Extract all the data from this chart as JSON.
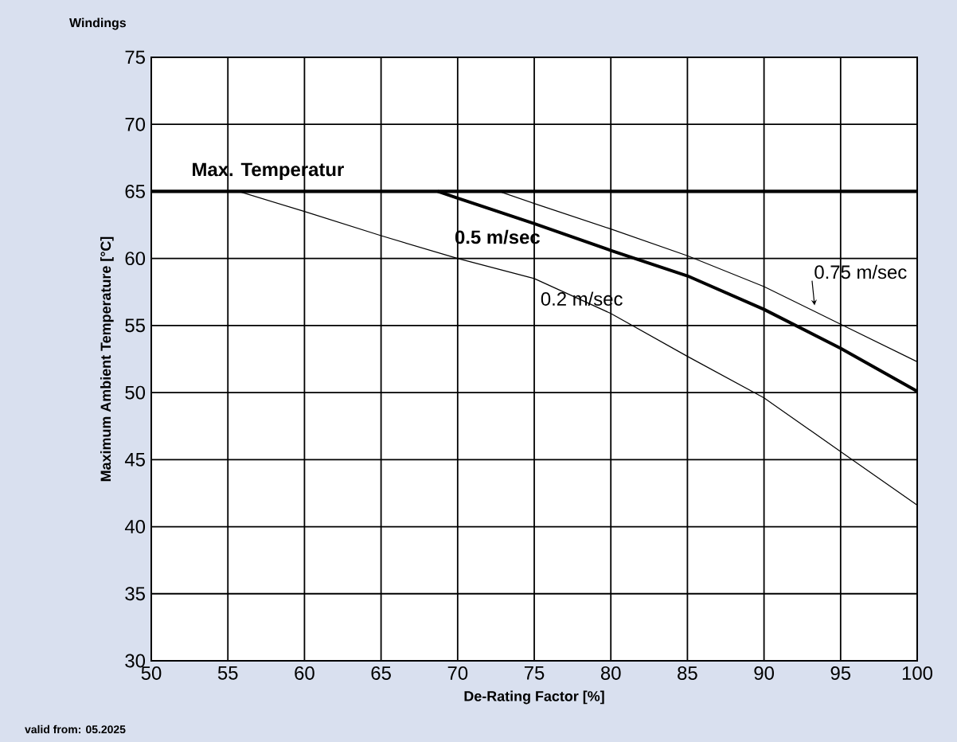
{
  "chart_data": {
    "type": "line",
    "title": "Windings",
    "xlabel": "De-Rating Factor [%]",
    "ylabel": "Maximum Ambient Temperature [°C]",
    "annotations": [
      "valid from: 05.2025"
    ],
    "xlim": [
      50,
      100
    ],
    "ylim": [
      30,
      75
    ],
    "xticks": [
      50,
      55,
      60,
      65,
      70,
      75,
      80,
      85,
      90,
      95,
      100
    ],
    "yticks": [
      30,
      35,
      40,
      45,
      50,
      55,
      60,
      65,
      70,
      75
    ],
    "grid": true,
    "legend": false,
    "marker": "none",
    "line_style": "solid",
    "ref_lines": [
      {
        "axis": "y",
        "value": 65,
        "label": "Max. Temperatur",
        "color": "#000000"
      }
    ],
    "series": [
      {
        "name": "0.2 m/sec",
        "color": "#000000",
        "x": [
          55.7,
          60,
          65,
          70,
          75,
          80,
          85,
          90,
          95,
          100
        ],
        "values": [
          65,
          63.5,
          61.7,
          60,
          58.5,
          55.9,
          52.7,
          49.6,
          45.6,
          41.6
        ]
      },
      {
        "name": "0.5 m/sec",
        "color": "#000000",
        "x": [
          68.7,
          70,
          75,
          80,
          85,
          90,
          95,
          100
        ],
        "values": [
          65,
          64.5,
          62.6,
          60.6,
          58.7,
          56.2,
          53.3,
          50.1
        ]
      },
      {
        "name": "0.75 m/sec",
        "color": "#000000",
        "x": [
          72.7,
          75,
          80,
          85,
          90,
          95,
          100
        ],
        "values": [
          65,
          64.1,
          62.2,
          60.2,
          57.9,
          55.1,
          52.3
        ]
      }
    ]
  }
}
